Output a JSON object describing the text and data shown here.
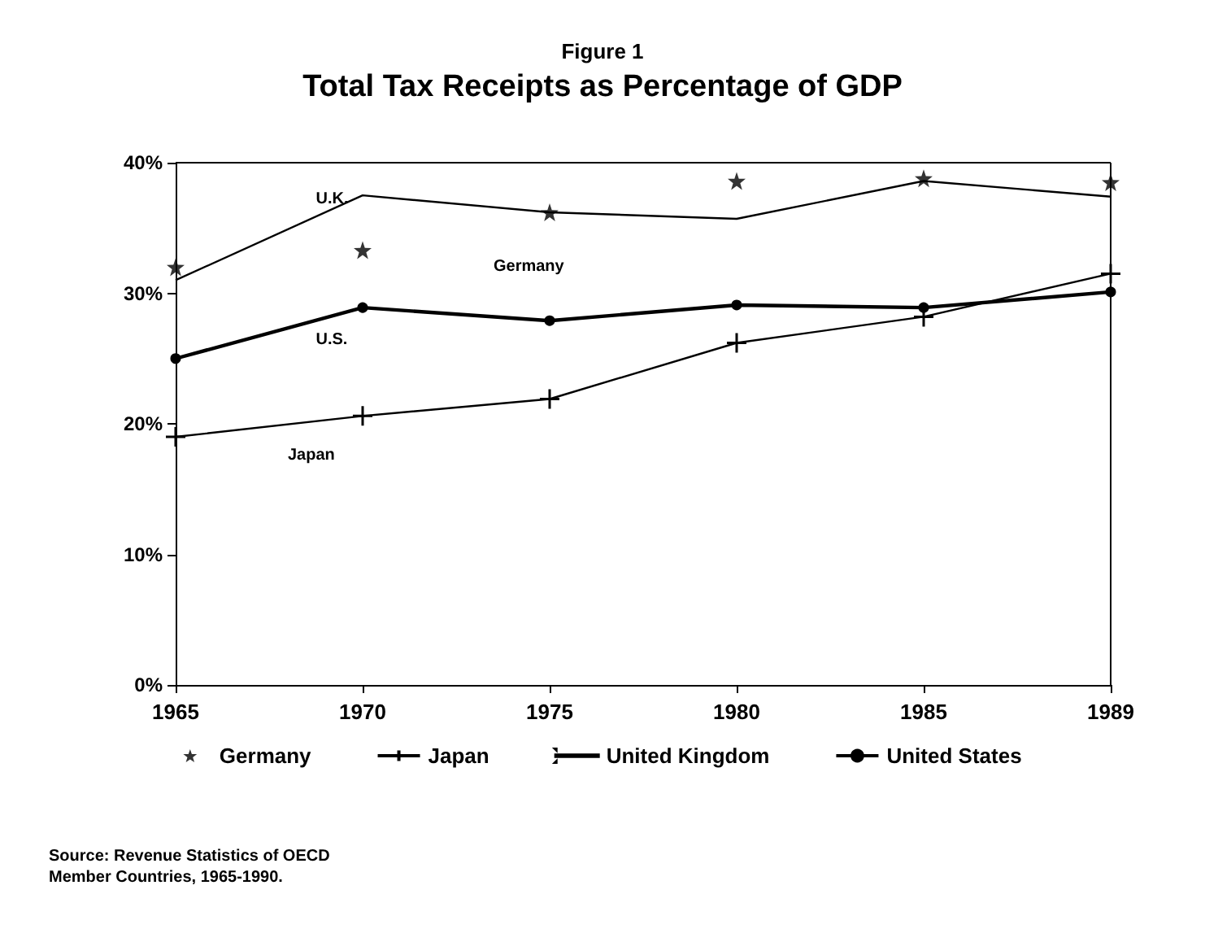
{
  "chart_data": {
    "type": "line",
    "title": "Figure 1",
    "subtitle": "Total Tax Receipts as Percentage of GDP",
    "categories": [
      "1965",
      "1970",
      "1975",
      "1980",
      "1985",
      "1989"
    ],
    "series": [
      {
        "name": "Germany",
        "type": "scatter",
        "marker": "star",
        "color": "#000000",
        "values": [
          32.0,
          33.3,
          36.2,
          38.6,
          38.8,
          38.5
        ]
      },
      {
        "name": "Japan",
        "marker": "cross",
        "color": "#000000",
        "values": [
          19.0,
          20.6,
          21.9,
          26.2,
          28.2,
          31.5
        ]
      },
      {
        "name": "United Kingdom",
        "marker": "none",
        "color": "#000000",
        "values": [
          31.0,
          37.5,
          36.2,
          35.7,
          38.6,
          37.4
        ]
      },
      {
        "name": "United States",
        "marker": "circle",
        "color": "#000000",
        "values": [
          25.0,
          28.9,
          27.9,
          29.1,
          28.9,
          30.1
        ]
      }
    ],
    "ylim": [
      0,
      40
    ],
    "yticks": [
      {
        "value": 0,
        "label": "0%"
      },
      {
        "value": 10,
        "label": "10%"
      },
      {
        "value": 20,
        "label": "20%"
      },
      {
        "value": 30,
        "label": "30%"
      },
      {
        "value": 40,
        "label": "40%"
      }
    ],
    "grid": false,
    "legend": "bottom",
    "annotations": [
      "U.K.",
      "Germany",
      "U.S.",
      "Japan",
      "Source: Revenue Statistics of OECD\nMember Countries, 1965-1990."
    ]
  }
}
